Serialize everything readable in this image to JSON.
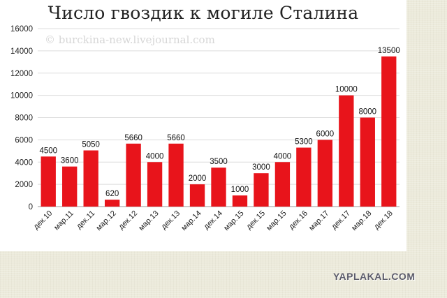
{
  "watermark": "© burckina-new.livejournal.com",
  "logo": "YAPLAKAL.COM",
  "chart_data": {
    "type": "bar",
    "title": "Число гвоздик к могиле Сталина",
    "xlabel": "",
    "ylabel": "",
    "categories": [
      "дек.10",
      "мар.11",
      "дек.11",
      "мар.12",
      "дек.12",
      "мар.13",
      "дек.13",
      "мар.14",
      "дек.14",
      "мар.15",
      "дек.15",
      "мар.15",
      "дек.16",
      "мар.17",
      "дек.17",
      "мар.18",
      "дек.18"
    ],
    "values": [
      4500,
      3600,
      5050,
      620,
      5660,
      4000,
      5660,
      2000,
      3500,
      1000,
      3000,
      4000,
      5300,
      6000,
      10000,
      8000,
      13500
    ],
    "ylim": [
      0,
      16000
    ],
    "yticks": [
      0,
      2000,
      4000,
      6000,
      8000,
      10000,
      12000,
      14000,
      16000
    ],
    "grid": true,
    "bar_color": "#e8141b",
    "data_labels": true
  }
}
